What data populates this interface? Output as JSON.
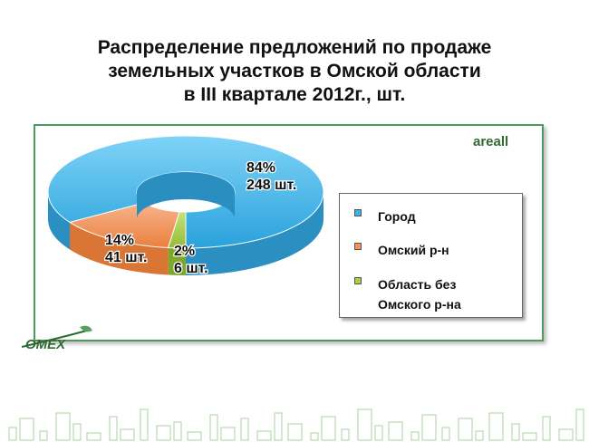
{
  "title_lines": [
    "Распределение  предложений  по продаже",
    "земельных участков в Омской области",
    "в III квартале 2012г., шт."
  ],
  "brand": "areall",
  "logo_text": "OMEX",
  "colors": {
    "city": "#3fb3e8",
    "omsk_district": "#f0955a",
    "region_excl_omsk": "#a9cf4a",
    "frame": "#4e9a5b",
    "brand": "#2f6b30"
  },
  "chart_data": {
    "type": "pie",
    "style": "3d-donut",
    "categories": [
      "Город",
      "Омский р-н",
      "Область без Омского р-на"
    ],
    "values": [
      248,
      41,
      6
    ],
    "percents": [
      84,
      14,
      2
    ],
    "data_labels": [
      {
        "percent": "84%",
        "count": "248 шт."
      },
      {
        "percent": "14%",
        "count": "41 шт."
      },
      {
        "percent": "2%",
        "count": "6 шт."
      }
    ],
    "legend": {
      "placement": "right",
      "entries": [
        {
          "line1": "Город",
          "line2": ""
        },
        {
          "line1": "Омский р-н",
          "line2": ""
        },
        {
          "line1": "Область без",
          "line2": "Омского р-на"
        }
      ]
    }
  }
}
